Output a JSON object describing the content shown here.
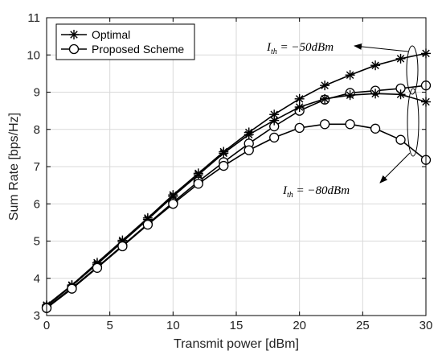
{
  "chart_data": {
    "type": "line",
    "title": "",
    "xlabel": "Transmit power [dBm]",
    "ylabel": "Sum Rate [bps/Hz]",
    "xlim": [
      0,
      30
    ],
    "ylim": [
      3,
      11
    ],
    "xticks": [
      "0",
      "5",
      "10",
      "15",
      "20",
      "25",
      "30"
    ],
    "yticks": [
      "3",
      "4",
      "5",
      "6",
      "7",
      "8",
      "9",
      "10",
      "11"
    ],
    "grid": true,
    "legend_placement": "top-left",
    "legend": [
      {
        "label": "Optimal",
        "marker": "asterisk"
      },
      {
        "label": "Proposed Scheme",
        "marker": "circle"
      }
    ],
    "series": [
      {
        "group": "I_th = -50 dBm",
        "marker": "asterisk",
        "x": [
          0,
          2,
          4,
          6,
          8,
          10,
          12,
          14,
          16,
          18,
          20,
          22,
          24,
          26,
          28,
          30
        ],
        "y": [
          3.28,
          3.82,
          4.42,
          5.02,
          5.62,
          6.24,
          6.82,
          7.4,
          7.92,
          8.4,
          8.82,
          9.18,
          9.46,
          9.72,
          9.9,
          10.04
        ]
      },
      {
        "group": "I_th = -50 dBm",
        "marker": "circle",
        "x": [
          0,
          2,
          4,
          6,
          8,
          10,
          12,
          14,
          16,
          18,
          20,
          22,
          24,
          26,
          28,
          30
        ],
        "y": [
          3.22,
          3.74,
          4.3,
          4.88,
          5.46,
          6.04,
          6.6,
          7.12,
          7.62,
          8.08,
          8.5,
          8.8,
          8.98,
          9.04,
          9.1,
          9.18
        ]
      },
      {
        "group": "I_th = -80 dBm",
        "marker": "asterisk",
        "x": [
          0,
          2,
          4,
          6,
          8,
          10,
          12,
          14,
          16,
          18,
          20,
          22,
          24,
          26,
          28,
          30
        ],
        "y": [
          3.26,
          3.8,
          4.38,
          4.98,
          5.58,
          6.2,
          6.78,
          7.36,
          7.86,
          8.24,
          8.6,
          8.82,
          8.92,
          8.96,
          8.94,
          8.74
        ]
      },
      {
        "group": "I_th = -80 dBm",
        "marker": "circle",
        "x": [
          0,
          2,
          4,
          6,
          8,
          10,
          12,
          14,
          16,
          18,
          20,
          22,
          24,
          26,
          28,
          30
        ],
        "y": [
          3.2,
          3.72,
          4.28,
          4.86,
          5.44,
          6.0,
          6.54,
          7.02,
          7.44,
          7.78,
          8.04,
          8.14,
          8.14,
          8.02,
          7.72,
          7.18
        ]
      }
    ],
    "annotations": [
      {
        "text_pre": "I",
        "text_sub": "th",
        "text_post": " = −50dBm"
      },
      {
        "text_pre": "I",
        "text_sub": "th",
        "text_post": " = −80dBm"
      }
    ]
  }
}
